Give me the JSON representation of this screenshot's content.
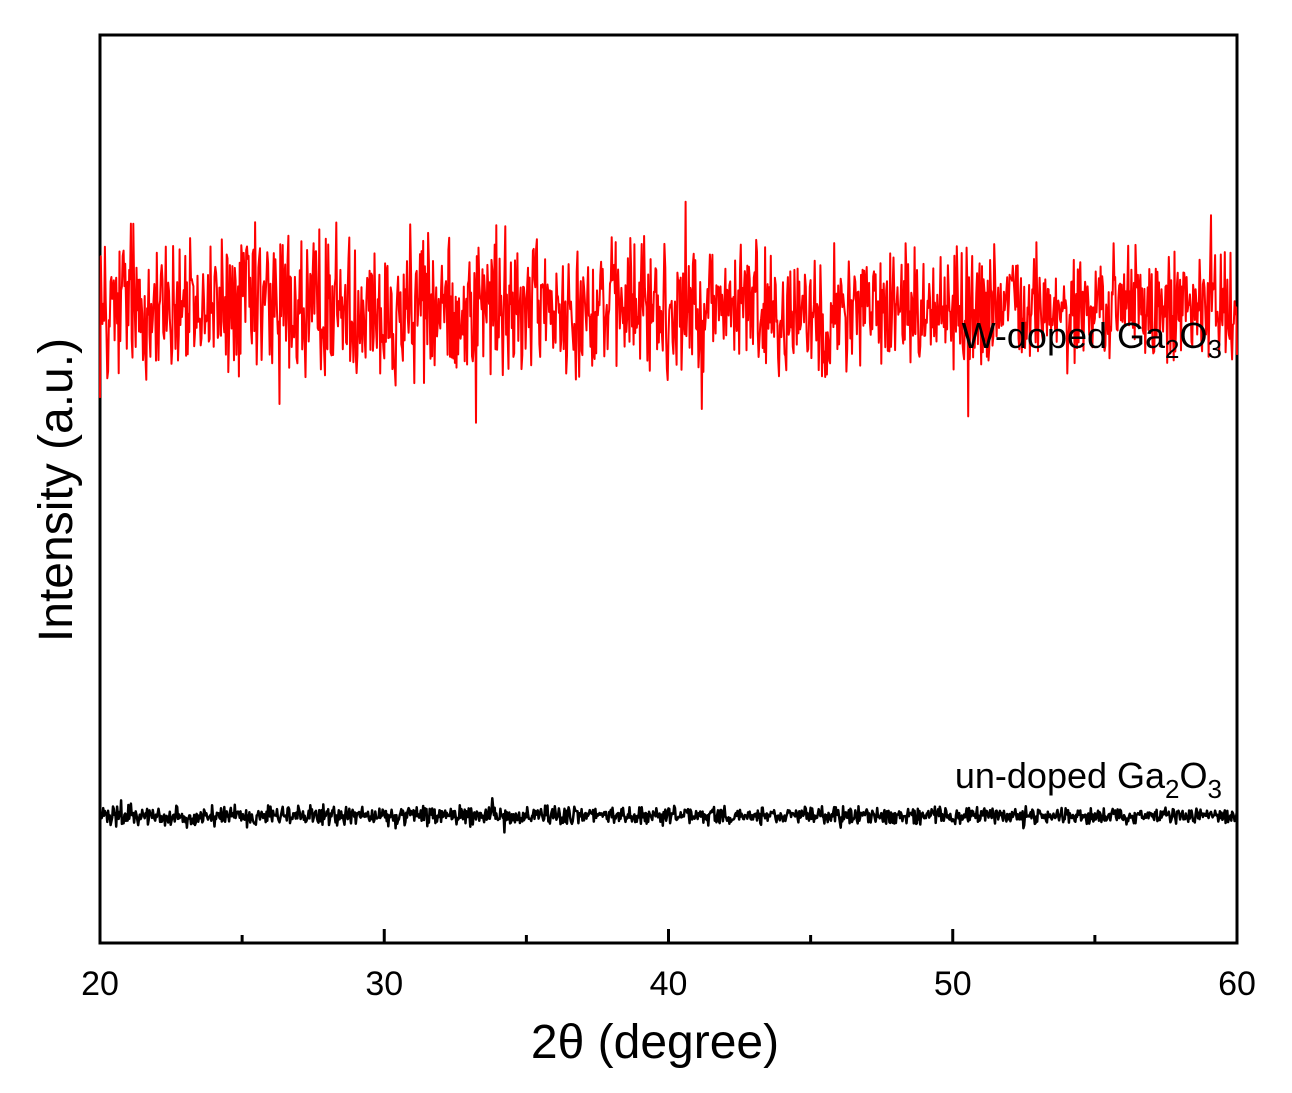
{
  "chart_data": {
    "type": "line",
    "title": "",
    "xlabel": "2θ (degree)",
    "ylabel": "Intensity (a.u.)",
    "xlim": [
      20,
      60
    ],
    "x_ticks": [
      20,
      30,
      40,
      50,
      60
    ],
    "x_minor_ticks": [
      25,
      35,
      45,
      55
    ],
    "y_ticks_shown": false,
    "grid": false,
    "legend": "none",
    "series": [
      {
        "name": "W-doped Ga2O3",
        "label_parts": {
          "a": "W-doped Ga",
          "b": "2",
          "c": "O",
          "d": "3"
        },
        "color": "#ff0000",
        "baseline": 0.7,
        "noise_amplitude": 0.09,
        "description_of_values": "noisy amorphous baseline with no diffraction peaks"
      },
      {
        "name": "un-doped Ga2O3",
        "label_parts": {
          "a": "un-doped Ga",
          "b": "2",
          "c": "O",
          "d": "3"
        },
        "color": "#000000",
        "baseline": 0.14,
        "noise_amplitude": 0.012,
        "description_of_values": "flat noisy baseline with no diffraction peaks"
      }
    ]
  }
}
